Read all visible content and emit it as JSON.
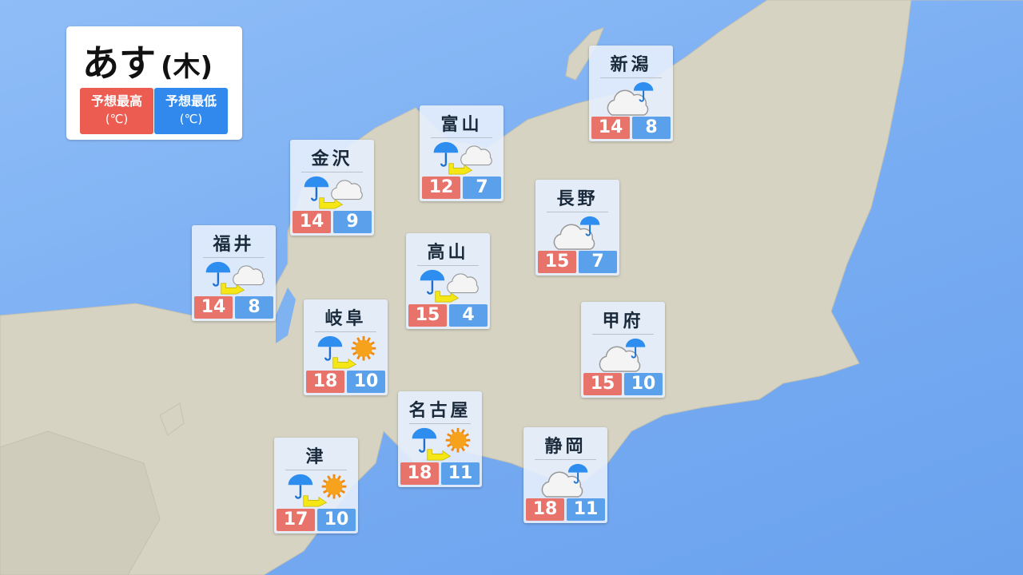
{
  "header": {
    "day": "あす",
    "weekday": "(木)"
  },
  "legend": {
    "high_label": "予想最高",
    "high_unit": "(℃)",
    "low_label": "予想最低",
    "low_unit": "(℃)",
    "high_color": "#ec5c50",
    "low_color": "#3189ee"
  },
  "cities": [
    {
      "name": "新潟",
      "weather": "cloudy-sometimes-rain",
      "high": "14",
      "low": "8"
    },
    {
      "name": "富山",
      "weather": "rain-then-cloudy",
      "high": "12",
      "low": "7"
    },
    {
      "name": "金沢",
      "weather": "rain-then-cloudy",
      "high": "14",
      "low": "9"
    },
    {
      "name": "長野",
      "weather": "cloudy-sometimes-rain",
      "high": "15",
      "low": "7"
    },
    {
      "name": "福井",
      "weather": "rain-then-cloudy",
      "high": "14",
      "low": "8"
    },
    {
      "name": "高山",
      "weather": "rain-then-cloudy",
      "high": "15",
      "low": "4"
    },
    {
      "name": "岐阜",
      "weather": "rain-then-sunny",
      "high": "18",
      "low": "10"
    },
    {
      "name": "甲府",
      "weather": "cloudy-sometimes-rain",
      "high": "15",
      "low": "10"
    },
    {
      "name": "名古屋",
      "weather": "rain-then-sunny",
      "high": "18",
      "low": "11"
    },
    {
      "name": "静岡",
      "weather": "cloudy-sometimes-rain",
      "high": "18",
      "low": "11"
    },
    {
      "name": "津",
      "weather": "rain-then-sunny",
      "high": "17",
      "low": "10"
    }
  ]
}
